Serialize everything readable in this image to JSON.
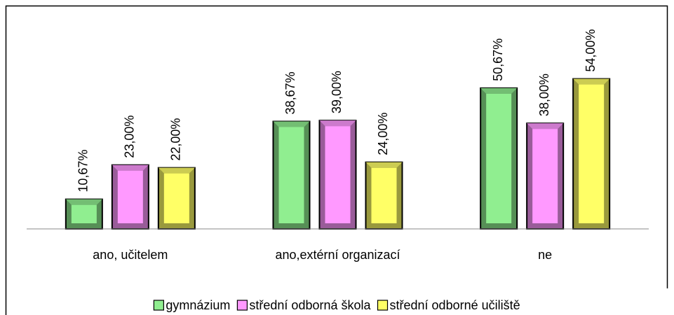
{
  "chart_data": {
    "type": "bar",
    "categories": [
      "ano, učitelem",
      "ano,extérní organizací",
      "ne"
    ],
    "series": [
      {
        "name": "gymnázium",
        "color": "#90ee90",
        "values": [
          10.67,
          38.67,
          50.67
        ],
        "value_labels": [
          "10,67%",
          "38,67%",
          "50,67%"
        ]
      },
      {
        "name": "střední odborná škola",
        "color": "#ff99ff",
        "values": [
          23.0,
          39.0,
          38.0
        ],
        "value_labels": [
          "23,00%",
          "39,00%",
          "38,00%"
        ]
      },
      {
        "name": "střední odborné učiliště",
        "color": "#ffff66",
        "values": [
          22.0,
          24.0,
          54.0
        ],
        "value_labels": [
          "22,00%",
          "24,00%",
          "54,00%"
        ]
      }
    ],
    "legend": "bottom"
  }
}
